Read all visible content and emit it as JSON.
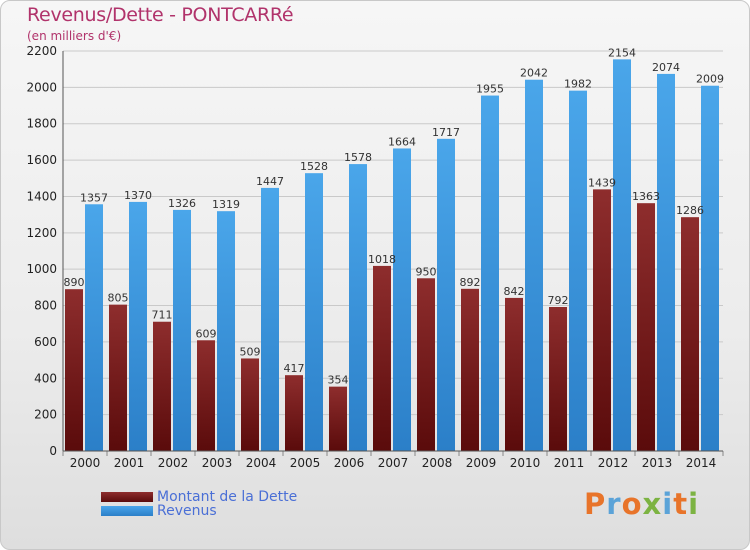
{
  "chart_data": {
    "type": "bar",
    "title": "Revenus/Dette - PONTCARRé",
    "subtitle": "(en milliers d'€)",
    "categories": [
      "2000",
      "2001",
      "2002",
      "2003",
      "2004",
      "2005",
      "2006",
      "2007",
      "2008",
      "2009",
      "2010",
      "2011",
      "2012",
      "2013",
      "2014"
    ],
    "series": [
      {
        "name": "Montant de la Dette",
        "color": "#7a1a1a",
        "values": [
          890,
          805,
          711,
          609,
          509,
          417,
          354,
          1018,
          950,
          892,
          842,
          792,
          1439,
          1363,
          1286
        ],
        "labels": [
          "890",
          "805",
          "711",
          "609",
          "509",
          "417",
          "354",
          "1018",
          "950",
          "892",
          "842",
          "792",
          "1439",
          "1363",
          "1286"
        ]
      },
      {
        "name": "Revenus",
        "color": "#3d95e0",
        "values": [
          1357,
          1370,
          1326,
          1319,
          1447,
          1528,
          1578,
          1664,
          1717,
          1955,
          2042,
          1982,
          2154,
          2074,
          2009
        ],
        "labels": [
          "1357",
          "1370",
          "1326",
          "1319",
          "1447",
          "1528",
          "1578",
          "1664",
          "1717",
          "1955",
          "2042",
          "1982",
          "2154",
          "2074",
          "2009"
        ]
      }
    ],
    "ylim": [
      0,
      2200
    ],
    "yticks": [
      0,
      200,
      400,
      600,
      800,
      1000,
      1200,
      1400,
      1600,
      1800,
      2000,
      2200
    ],
    "grid": true,
    "legend_position": "bottom-left"
  },
  "logo": {
    "text": "Proxiti",
    "colors": [
      "#e8742a",
      "#5ba3d8",
      "#e8742a",
      "#7cb342",
      "#5ba3d8",
      "#e8742a",
      "#7cb342"
    ]
  }
}
